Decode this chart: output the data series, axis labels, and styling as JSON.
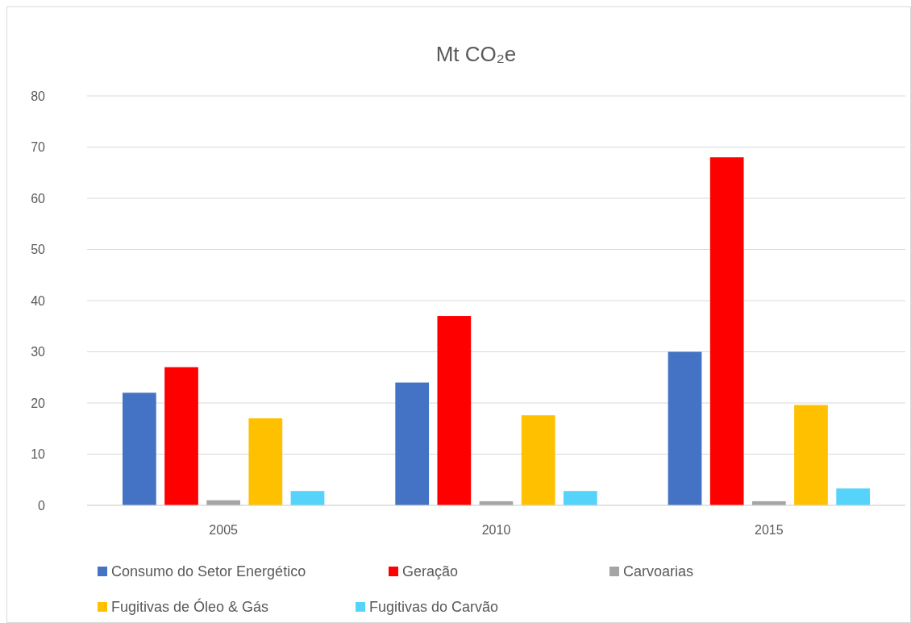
{
  "chart_data": {
    "type": "bar",
    "title": "Mt CO₂e",
    "categories": [
      "2005",
      "2010",
      "2015"
    ],
    "series": [
      {
        "name": "Consumo do Setor Energético",
        "color": "#4472c4",
        "values": [
          22,
          24,
          30
        ]
      },
      {
        "name": "Geração",
        "color": "#ff0000",
        "values": [
          27,
          37,
          68
        ]
      },
      {
        "name": "Carvoarias",
        "color": "#a5a5a5",
        "values": [
          1,
          0.8,
          0.8
        ]
      },
      {
        "name": "Fugitivas de Óleo & Gás",
        "color": "#ffc000",
        "values": [
          17,
          17.6,
          19.6
        ]
      },
      {
        "name": "Fugitivas do Carvão",
        "color": "#55d3fb",
        "values": [
          2.8,
          2.8,
          3.3
        ]
      }
    ],
    "ylim": [
      0,
      80
    ],
    "yticks": [
      0,
      10,
      20,
      30,
      40,
      50,
      60,
      70,
      80
    ],
    "grid": "y",
    "legend": "bottom"
  }
}
